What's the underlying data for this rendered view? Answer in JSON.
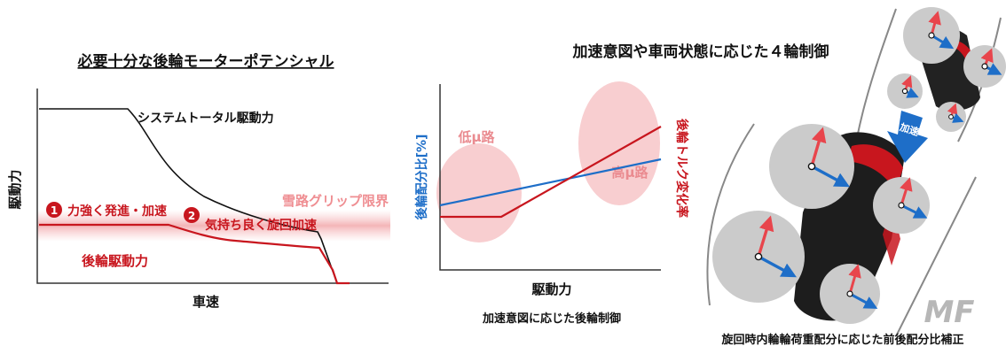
{
  "left_panel": {
    "title": "必要十分な後輪モーターポテンシャル",
    "y_axis_label": "駆動力",
    "x_axis_label": "車速",
    "system_total_label": "システムトータル駆動力",
    "snow_grip_label": "雪路グリップ限界",
    "rear_drive_label": "後輪駆動力",
    "points": [
      {
        "number": "1",
        "label": "力強く発進・加速"
      },
      {
        "number": "2",
        "label": "気持ち良く旋回加速"
      }
    ]
  },
  "middle_panel": {
    "title": "加速意図や車両状態に応じた４輪制御",
    "y_axis_left_label": "後輪配分比[%]",
    "y_axis_right_label": "後輪トルク変化率",
    "x_axis_label": "駆動力",
    "low_mu_label": "低μ路",
    "high_mu_label": "高μ路",
    "caption": "加速意図に応じた後輪制御"
  },
  "right_panel": {
    "arrow_label": "加速",
    "caption": "旋回時内輪輪荷重配分に応じた前後配分比補正",
    "watermark": "MF"
  },
  "colors": {
    "red": "#c8161e",
    "blue": "#1e6ec8",
    "pink": "#f7c6c8",
    "grey_circle": "#cbcbcb",
    "line": "#222222"
  }
}
